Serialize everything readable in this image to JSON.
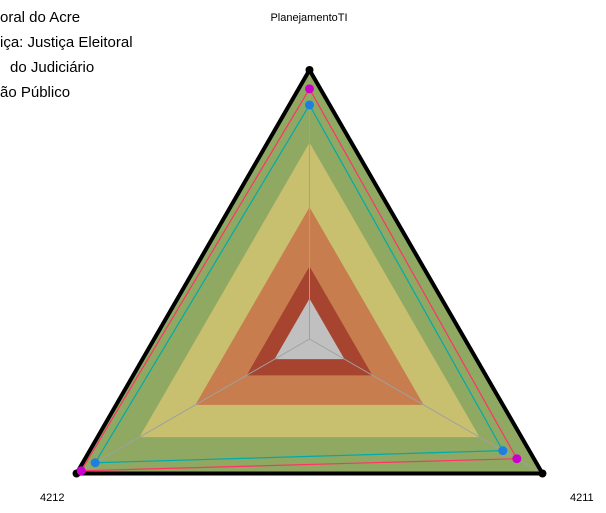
{
  "chart_data": {
    "type": "radar",
    "legend_lines": [
      "oral do Acre",
      "iça: Justiça Eleitoral",
      " do Judiciário",
      "ão Público"
    ],
    "categories": [
      "PlanejamentoTI",
      "4211",
      "4212"
    ],
    "rlim": [
      0,
      100
    ],
    "bands": [
      {
        "value": 100,
        "color": "#8fa963"
      },
      {
        "value": 73,
        "color": "#c8c06f"
      },
      {
        "value": 49,
        "color": "#c77d4e"
      },
      {
        "value": 27,
        "color": "#a7442f"
      },
      {
        "value": 15,
        "color": "#c0c0c0"
      }
    ],
    "series": [
      {
        "color": "#000000",
        "marker_color": "#000000",
        "values": [
          100,
          100,
          100
        ]
      },
      {
        "color": "#ff3366",
        "marker_color": "#cc00cc",
        "values": [
          93,
          89,
          98
        ]
      },
      {
        "color": "#00aaaa",
        "marker_color": "#1e7fe0",
        "values": [
          87,
          83,
          92
        ]
      }
    ]
  }
}
